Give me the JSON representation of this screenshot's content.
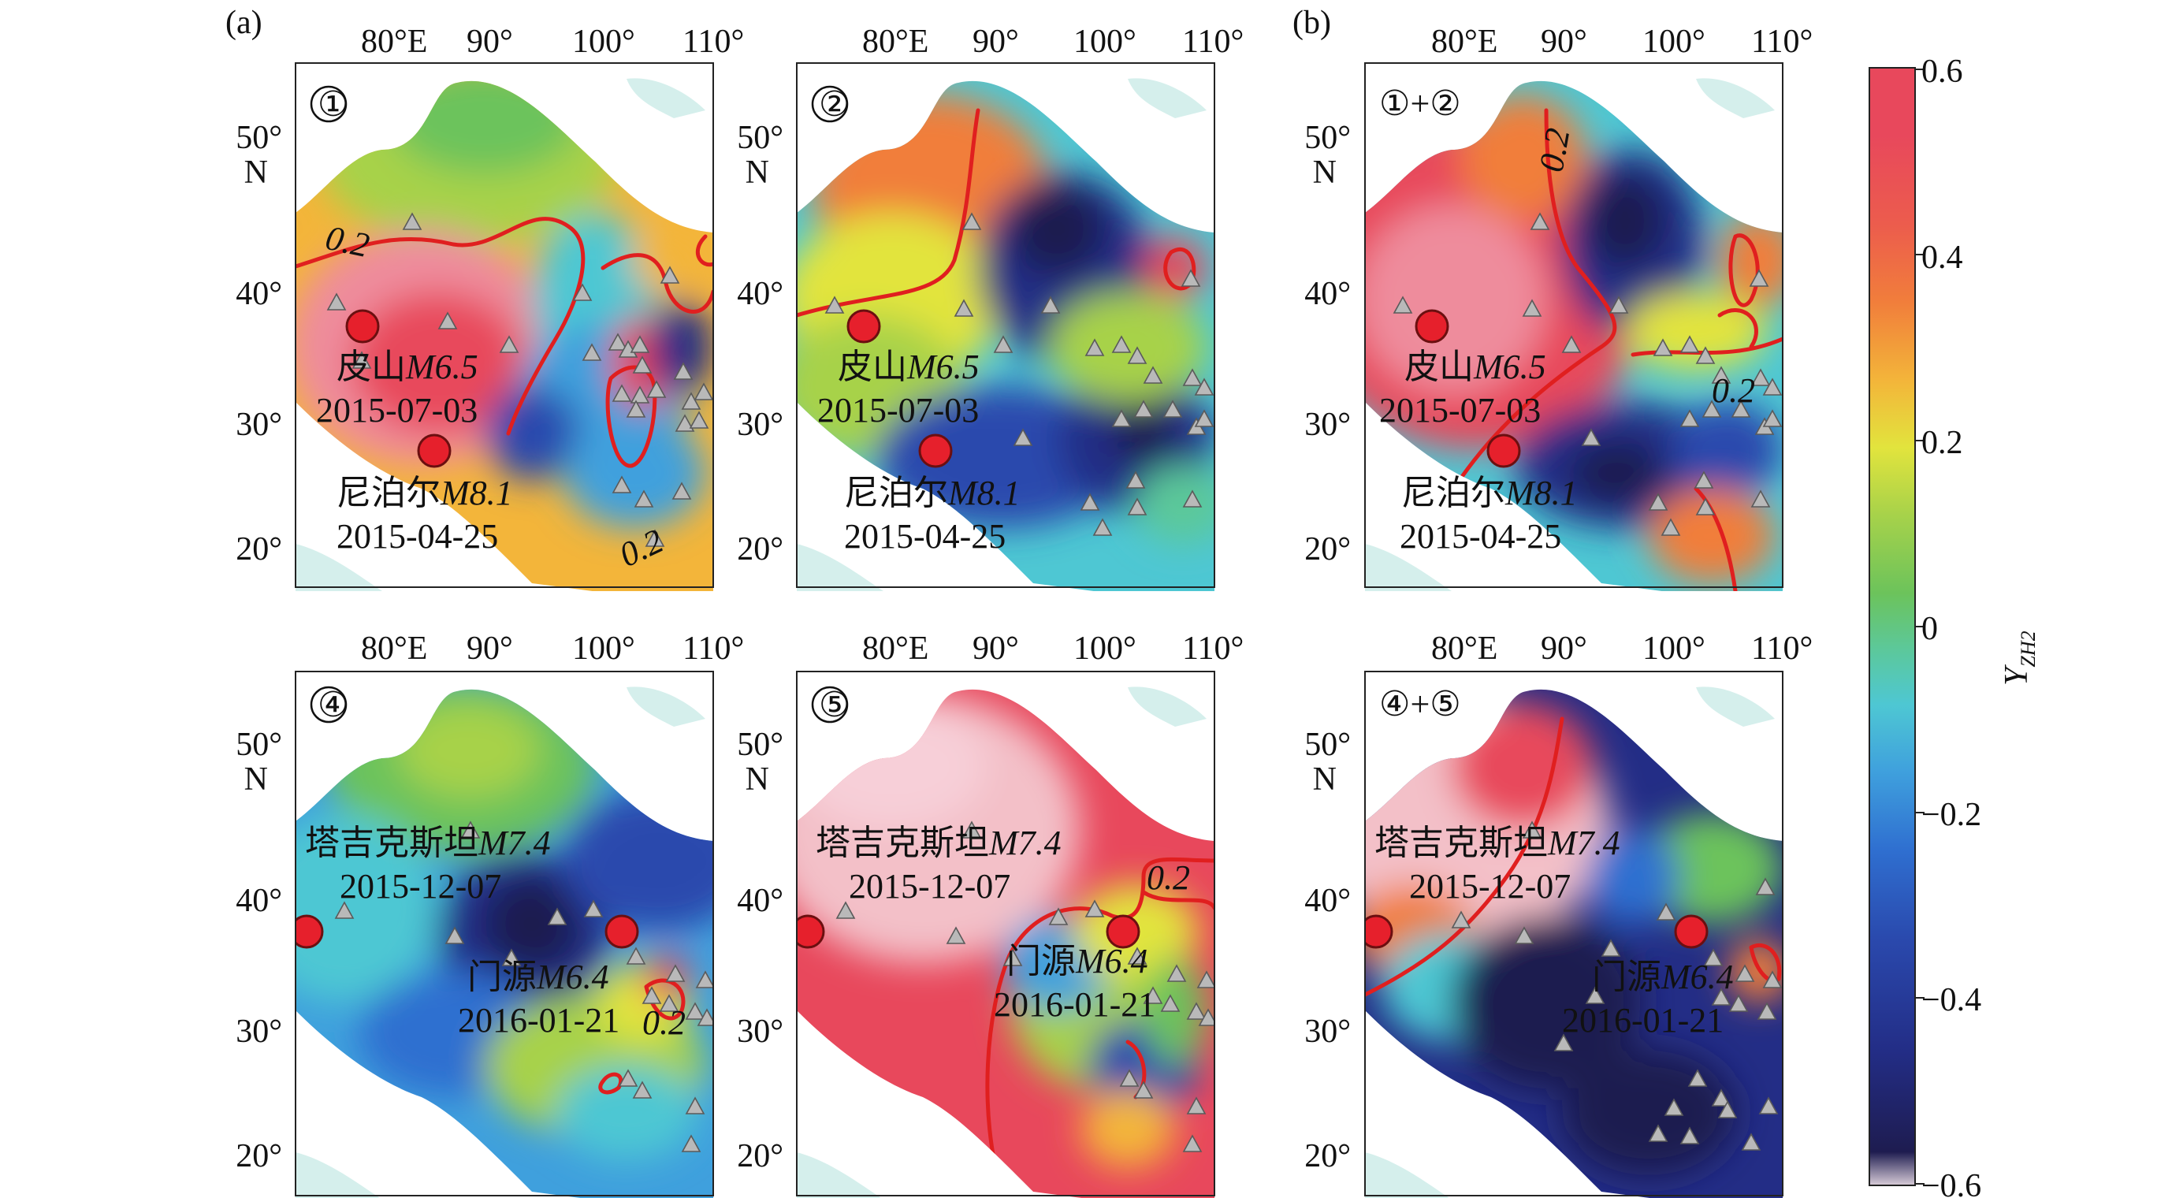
{
  "figure": {
    "panel_group_a": "(a)",
    "panel_group_b": "(b)",
    "lon_labels": [
      "80°E",
      "90°",
      "100°",
      "110°"
    ],
    "lat_labels": [
      "50°",
      "N",
      "40°",
      "30°",
      "20°"
    ],
    "contour_label": "0.2",
    "panels": [
      {
        "id": "1",
        "tag": "①",
        "events": [
          {
            "name": "皮山",
            "mag": "M6.5",
            "date": "2015-07-03"
          },
          {
            "name": "尼泊尔",
            "mag": "M8.1",
            "date": "2015-04-25"
          }
        ]
      },
      {
        "id": "2",
        "tag": "②",
        "events": [
          {
            "name": "皮山",
            "mag": "M6.5",
            "date": "2015-07-03"
          },
          {
            "name": "尼泊尔",
            "mag": "M8.1",
            "date": "2015-04-25"
          }
        ]
      },
      {
        "id": "12",
        "tag": "①+②",
        "events": [
          {
            "name": "皮山",
            "mag": "M6.5",
            "date": "2015-07-03"
          },
          {
            "name": "尼泊尔",
            "mag": "M8.1",
            "date": "2015-04-25"
          }
        ]
      },
      {
        "id": "4",
        "tag": "④",
        "events": [
          {
            "name": "塔吉克斯坦",
            "mag": "M7.4",
            "date": "2015-12-07"
          },
          {
            "name": "门源",
            "mag": "M6.4",
            "date": "2016-01-21"
          }
        ]
      },
      {
        "id": "5",
        "tag": "⑤",
        "events": [
          {
            "name": "塔吉克斯坦",
            "mag": "M7.4",
            "date": "2015-12-07"
          },
          {
            "name": "门源",
            "mag": "M6.4",
            "date": "2016-01-21"
          }
        ]
      },
      {
        "id": "45",
        "tag": "④+⑤",
        "events": [
          {
            "name": "塔吉克斯坦",
            "mag": "M7.4",
            "date": "2015-12-07"
          },
          {
            "name": "门源",
            "mag": "M6.4",
            "date": "2016-01-21"
          }
        ]
      }
    ],
    "colorbar": {
      "label_main": "Y",
      "label_sub": "ZH2",
      "ticks": [
        "0.6",
        "0.4",
        "0.2",
        "0",
        "−0.2",
        "−0.4",
        "−0.6"
      ],
      "min": -0.6,
      "max": 0.6,
      "colors": [
        "#1e1c50",
        "#232d86",
        "#2a49ad",
        "#2f6fd0",
        "#3fa0dd",
        "#4ec7d3",
        "#5cc89a",
        "#6cc35b",
        "#a7d24a",
        "#e2e43d",
        "#f3b53a",
        "#f17e3b",
        "#ec5c4d",
        "#e8485c",
        "#ee8c9c",
        "#f7cfd8"
      ]
    }
  }
}
